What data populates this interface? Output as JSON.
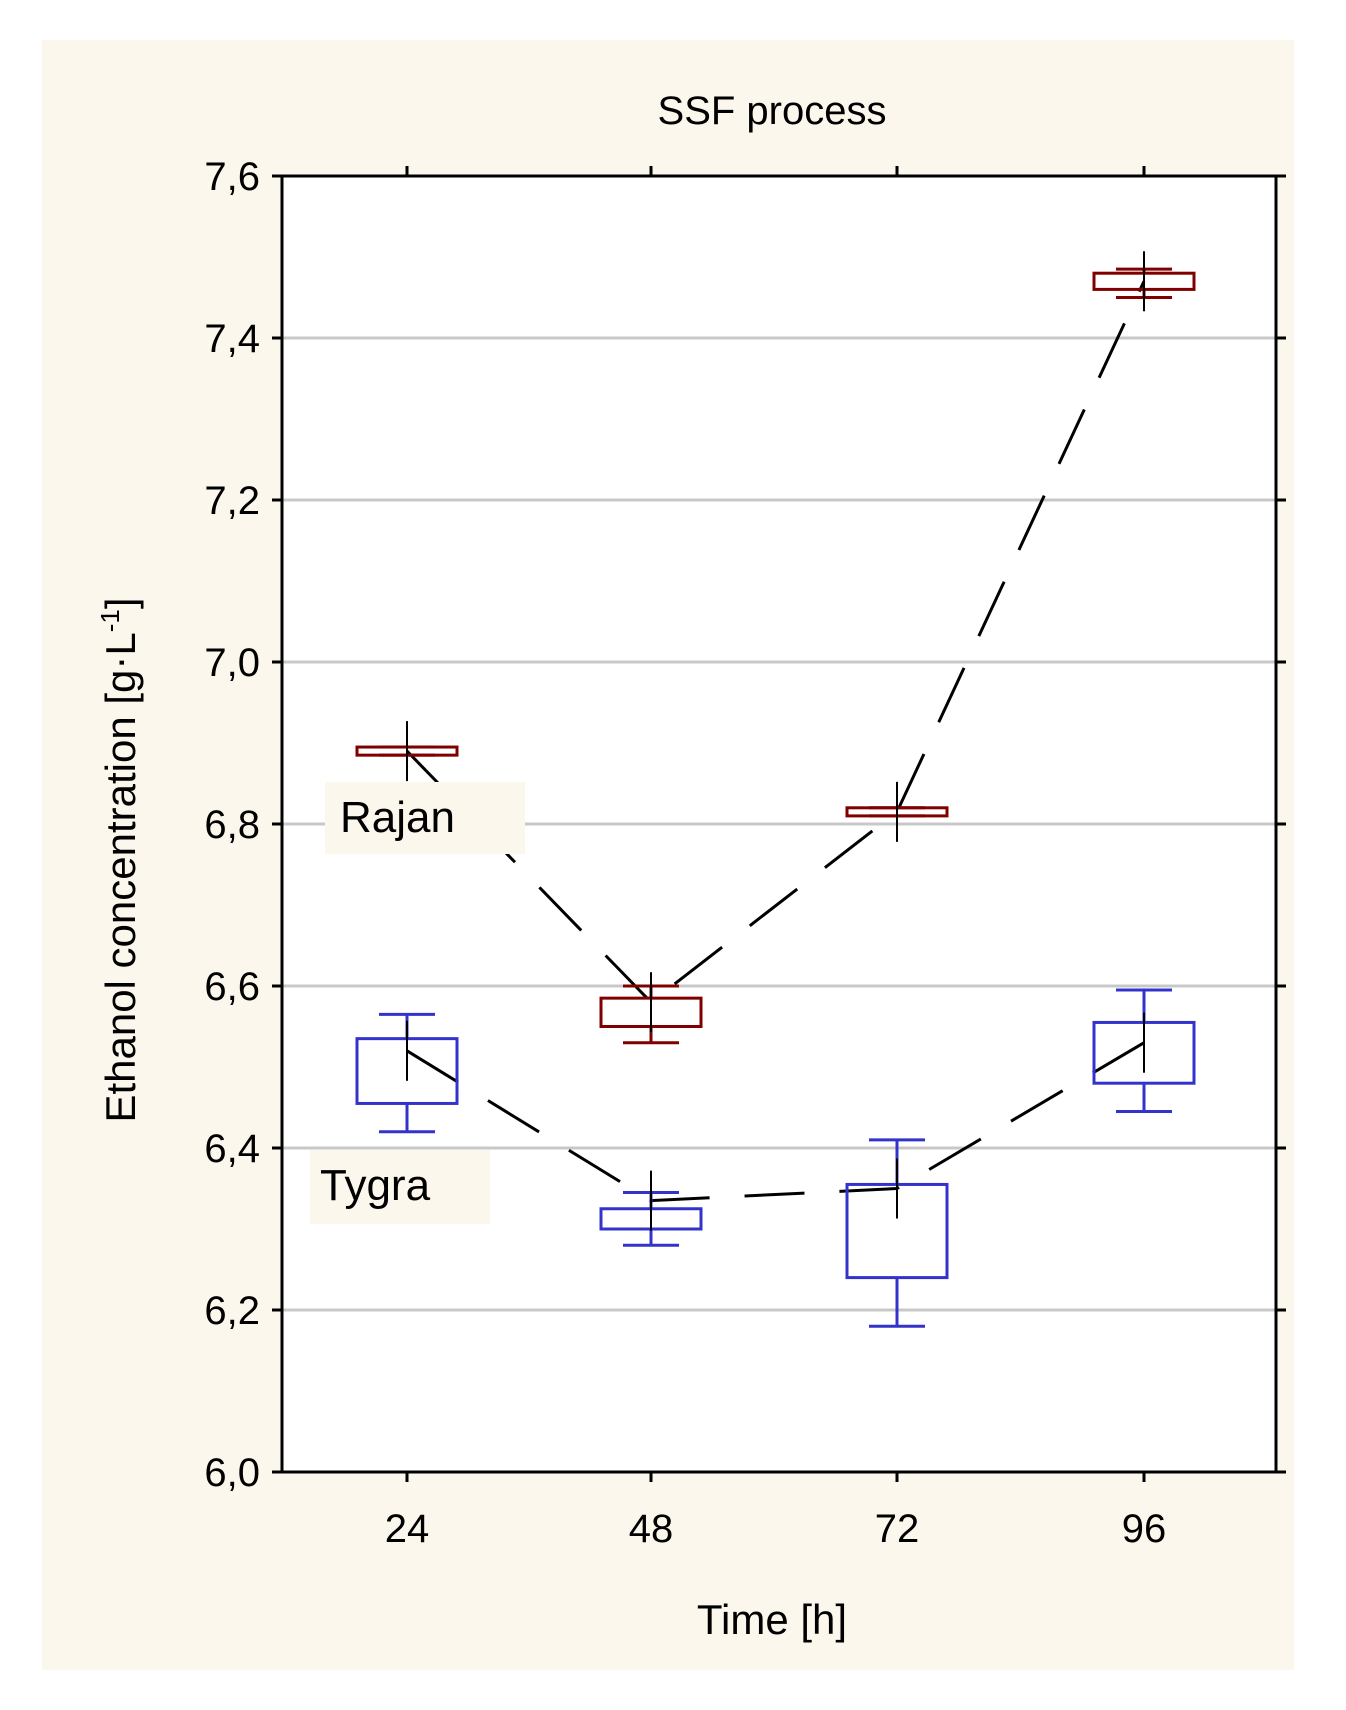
{
  "chart_data": {
    "type": "box",
    "title": "SSF process",
    "xlabel": "Time [h]",
    "ylabel": "Ethanol concentration [g·L⁻¹]",
    "ylabel_main": "Ethanol concentration [g",
    "ylabel_unit": "L",
    "ylabel_exp": "-1",
    "ylabel_close": "]",
    "categories": [
      "24",
      "48",
      "72",
      "96"
    ],
    "ylim": [
      6.0,
      7.6
    ],
    "yticks": [
      6.0,
      6.2,
      6.4,
      6.6,
      6.8,
      7.0,
      7.2,
      7.4,
      7.6
    ],
    "ytick_labels": [
      "6,0",
      "6,2",
      "6,4",
      "6,6",
      "6,8",
      "7,0",
      "7,2",
      "7,4",
      "7,6"
    ],
    "grid": true,
    "series": [
      {
        "name": "Rajan",
        "color": "#800000",
        "mean": [
          6.89,
          6.58,
          6.815,
          7.47
        ],
        "box_low": [
          6.885,
          6.55,
          6.81,
          7.46
        ],
        "box_high": [
          6.895,
          6.585,
          6.82,
          7.48
        ],
        "whisker_low": [
          6.885,
          6.53,
          6.81,
          7.45
        ],
        "whisker_high": [
          6.895,
          6.6,
          6.82,
          7.485
        ]
      },
      {
        "name": "Tygra",
        "color": "#3333cc",
        "mean": [
          6.52,
          6.335,
          6.35,
          6.53
        ],
        "box_low": [
          6.455,
          6.3,
          6.24,
          6.48
        ],
        "box_high": [
          6.535,
          6.325,
          6.355,
          6.555
        ],
        "whisker_low": [
          6.42,
          6.28,
          6.18,
          6.445
        ],
        "whisker_high": [
          6.565,
          6.345,
          6.41,
          6.595
        ]
      }
    ]
  },
  "colors": {
    "background": "#fbf7ec",
    "plot_background": "#ffffff",
    "grid": "#c8c8c8",
    "connector": "#000000"
  }
}
